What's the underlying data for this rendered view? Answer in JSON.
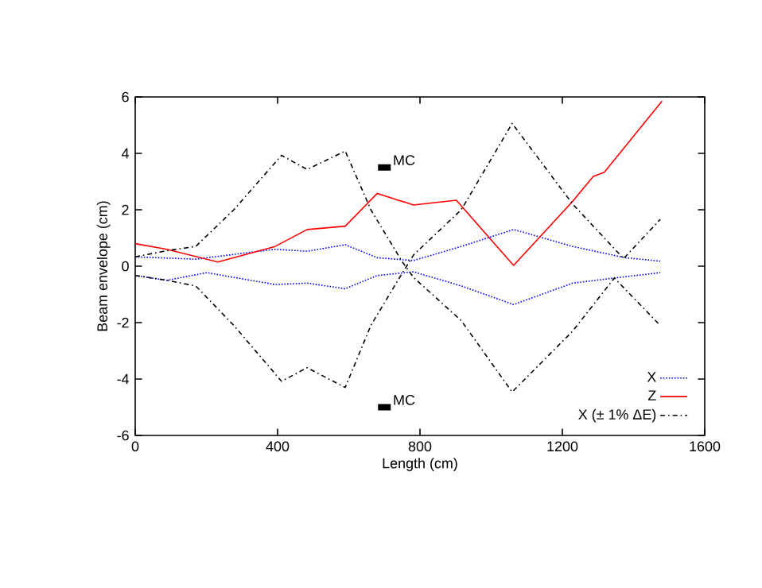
{
  "chart_data": {
    "type": "line",
    "xlabel": "Length (cm)",
    "ylabel": "Beam envelope (cm)",
    "xlim": [
      0,
      1600
    ],
    "ylim": [
      -6,
      6
    ],
    "xticks": [
      0,
      400,
      800,
      1200,
      1600
    ],
    "yticks": [
      -6,
      -4,
      -2,
      0,
      2,
      4,
      6
    ],
    "legend": "bottom right",
    "grid": false,
    "annotations": [
      {
        "text": "MC",
        "x": 700,
        "y": 3.5
      },
      {
        "text": "MC",
        "x": 700,
        "y": -5
      }
    ],
    "series": [
      {
        "name": "X",
        "color": "#0000ff",
        "line_style": "dotted",
        "x": [
          0,
          170,
          393,
          483,
          590,
          680,
          782,
          916,
          1063,
          1229,
          1376,
          1475
        ],
        "values": [
          0.33,
          0.25,
          0.6,
          0.53,
          0.76,
          0.3,
          0.2,
          0.7,
          1.3,
          0.7,
          0.3,
          0.18
        ]
      },
      {
        "color": "#0000ff",
        "line_style": "dotted",
        "x": [
          0,
          89,
          201,
          393,
          483,
          590,
          680,
          782,
          916,
          1063,
          1229,
          1346,
          1475
        ],
        "values": [
          -0.33,
          -0.5,
          -0.23,
          -0.65,
          -0.6,
          -0.8,
          -0.33,
          -0.2,
          -0.7,
          -1.36,
          -0.6,
          -0.42,
          -0.23
        ]
      },
      {
        "name": "Z",
        "color": "#ff0000",
        "line_style": "solid",
        "x": [
          0,
          89,
          232,
          393,
          483,
          590,
          680,
          782,
          902,
          1063,
          1229,
          1287,
          1318,
          1480
        ],
        "values": [
          0.8,
          0.6,
          0.15,
          0.7,
          1.3,
          1.42,
          2.58,
          2.17,
          2.34,
          0.03,
          2.3,
          3.18,
          3.33,
          5.85
        ]
      },
      {
        "name": "X (± 1% ΔE)",
        "color": "#000000",
        "line_style": "dashdotted",
        "x": [
          0,
          89,
          170,
          277,
          411,
          483,
          590,
          662,
          751,
          782,
          916,
          1059,
          1229,
          1346,
          1475
        ],
        "values": [
          0.33,
          0.55,
          0.7,
          2.0,
          3.93,
          3.43,
          4.08,
          2.0,
          0.14,
          -0.4,
          -1.93,
          -4.46,
          -2.3,
          -0.42,
          -2.1
        ]
      },
      {
        "color": "#000000",
        "line_style": "dashdotted",
        "x": [
          0,
          89,
          170,
          277,
          411,
          483,
          590,
          662,
          751,
          782,
          916,
          1059,
          1229,
          1372,
          1475
        ],
        "values": [
          -0.33,
          -0.5,
          -0.7,
          -2.1,
          -4.08,
          -3.6,
          -4.3,
          -2.1,
          -0.23,
          0.4,
          2.0,
          5.06,
          2.2,
          0.27,
          1.66
        ]
      }
    ]
  }
}
